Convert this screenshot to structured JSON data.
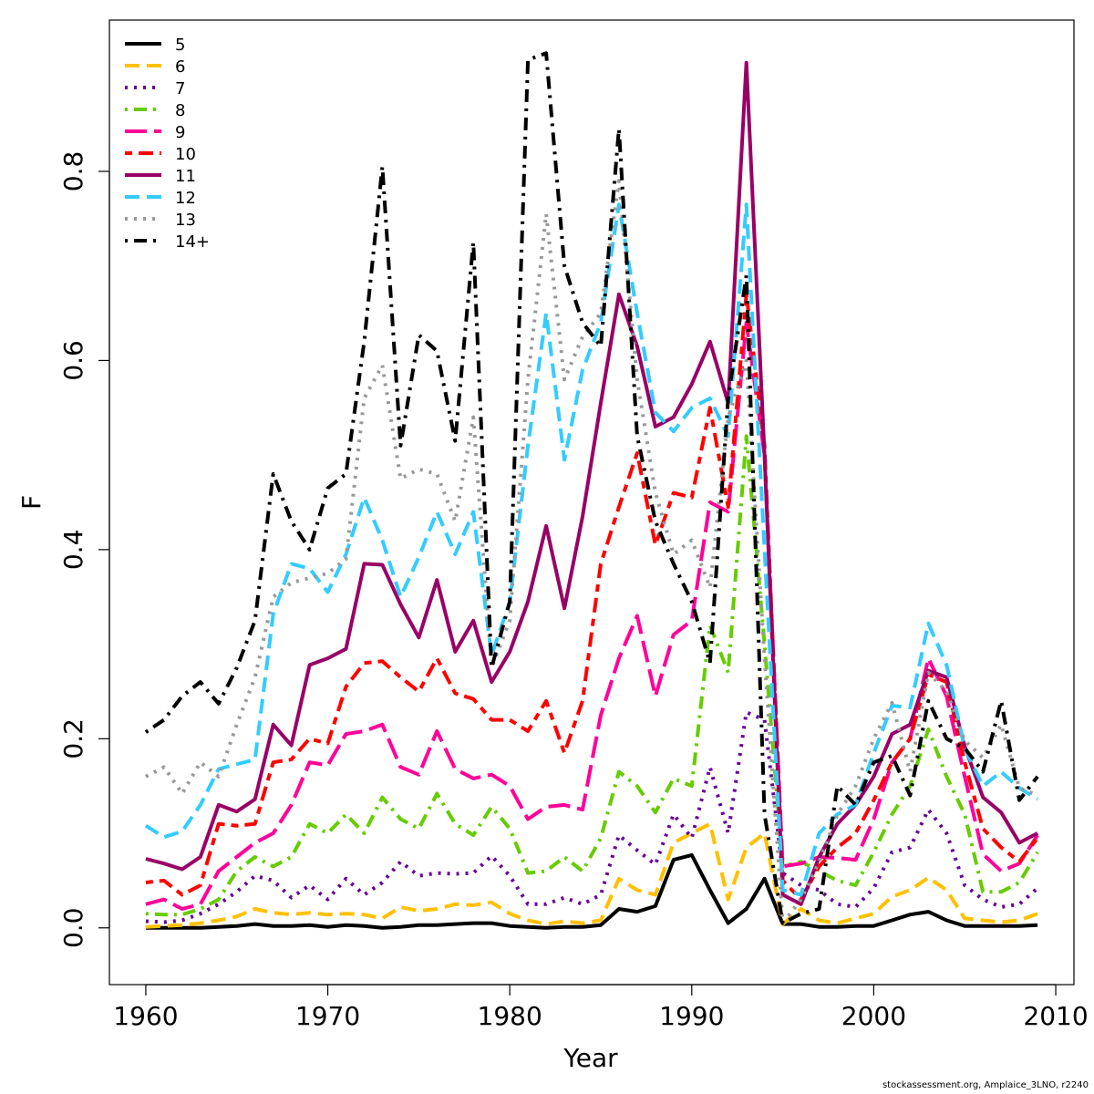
{
  "chart_data": {
    "type": "line",
    "title": "",
    "xlabel": "Year",
    "ylabel": "F",
    "xlim": [
      1958,
      2011
    ],
    "ylim": [
      -0.06,
      0.96
    ],
    "x_ticks": [
      1960,
      1970,
      1980,
      1990,
      2000,
      2010
    ],
    "y_ticks": [
      0.0,
      0.2,
      0.4,
      0.6,
      0.8
    ],
    "y_tick_labels": [
      "0.0",
      "0.2",
      "0.4",
      "0.6",
      "0.8"
    ],
    "legend_position": "top-left",
    "x": [
      1960,
      1961,
      1962,
      1963,
      1964,
      1965,
      1966,
      1967,
      1968,
      1969,
      1970,
      1971,
      1972,
      1973,
      1974,
      1975,
      1976,
      1977,
      1978,
      1979,
      1980,
      1981,
      1982,
      1983,
      1984,
      1985,
      1986,
      1987,
      1988,
      1989,
      1990,
      1991,
      1992,
      1993,
      1994,
      1995,
      1996,
      1997,
      1998,
      1999,
      2000,
      2001,
      2002,
      2003,
      2004,
      2005,
      2006,
      2007,
      2008,
      2009
    ],
    "series": [
      {
        "name": "5",
        "color": "#000000",
        "dash": "solid",
        "values": [
          0.0,
          0.0,
          0.0,
          0.0,
          0.001,
          0.002,
          0.004,
          0.002,
          0.002,
          0.003,
          0.001,
          0.003,
          0.002,
          0.0,
          0.001,
          0.003,
          0.003,
          0.004,
          0.005,
          0.005,
          0.002,
          0.001,
          0.0,
          0.001,
          0.001,
          0.003,
          0.02,
          0.017,
          0.023,
          0.072,
          0.077,
          0.04,
          0.005,
          0.02,
          0.052,
          0.004,
          0.004,
          0.001,
          0.001,
          0.002,
          0.002,
          0.008,
          0.014,
          0.017,
          0.008,
          0.002,
          0.002,
          0.002,
          0.002,
          0.003
        ]
      },
      {
        "name": "6",
        "color": "#FFC000",
        "dash": "dashed",
        "values": [
          0.001,
          0.002,
          0.003,
          0.005,
          0.008,
          0.012,
          0.02,
          0.016,
          0.014,
          0.016,
          0.014,
          0.015,
          0.014,
          0.01,
          0.022,
          0.018,
          0.02,
          0.025,
          0.024,
          0.027,
          0.015,
          0.008,
          0.004,
          0.007,
          0.005,
          0.008,
          0.052,
          0.04,
          0.035,
          0.09,
          0.1,
          0.11,
          0.03,
          0.085,
          0.1,
          0.004,
          0.02,
          0.008,
          0.005,
          0.01,
          0.015,
          0.033,
          0.04,
          0.053,
          0.04,
          0.01,
          0.008,
          0.006,
          0.008,
          0.015
        ]
      },
      {
        "name": "7",
        "color": "#660099",
        "dash": "dotted",
        "values": [
          0.007,
          0.006,
          0.008,
          0.015,
          0.025,
          0.038,
          0.055,
          0.05,
          0.032,
          0.045,
          0.03,
          0.052,
          0.035,
          0.048,
          0.07,
          0.055,
          0.058,
          0.057,
          0.058,
          0.076,
          0.055,
          0.025,
          0.025,
          0.032,
          0.025,
          0.035,
          0.098,
          0.082,
          0.067,
          0.12,
          0.095,
          0.17,
          0.1,
          0.228,
          0.22,
          0.058,
          0.045,
          0.04,
          0.025,
          0.022,
          0.042,
          0.08,
          0.085,
          0.125,
          0.1,
          0.045,
          0.03,
          0.022,
          0.025,
          0.042
        ]
      },
      {
        "name": "8",
        "color": "#66CC00",
        "dash": "dotdash",
        "values": [
          0.015,
          0.014,
          0.014,
          0.02,
          0.03,
          0.06,
          0.075,
          0.065,
          0.075,
          0.11,
          0.1,
          0.12,
          0.1,
          0.138,
          0.115,
          0.105,
          0.142,
          0.11,
          0.098,
          0.128,
          0.105,
          0.058,
          0.06,
          0.075,
          0.06,
          0.095,
          0.165,
          0.15,
          0.122,
          0.158,
          0.15,
          0.32,
          0.27,
          0.52,
          0.3,
          0.065,
          0.07,
          0.06,
          0.05,
          0.045,
          0.08,
          0.12,
          0.15,
          0.21,
          0.16,
          0.12,
          0.038,
          0.038,
          0.048,
          0.08
        ]
      },
      {
        "name": "9",
        "color": "#FF0099",
        "dash": "longdash",
        "values": [
          0.025,
          0.03,
          0.02,
          0.025,
          0.06,
          0.075,
          0.09,
          0.1,
          0.13,
          0.175,
          0.172,
          0.205,
          0.208,
          0.215,
          0.17,
          0.162,
          0.208,
          0.168,
          0.158,
          0.162,
          0.15,
          0.115,
          0.128,
          0.13,
          0.125,
          0.225,
          0.285,
          0.33,
          0.245,
          0.31,
          0.325,
          0.45,
          0.44,
          0.64,
          0.5,
          0.065,
          0.068,
          0.075,
          0.074,
          0.072,
          0.115,
          0.175,
          0.2,
          0.285,
          0.245,
          0.16,
          0.078,
          0.06,
          0.068,
          0.098
        ]
      },
      {
        "name": "10",
        "color": "#FF0000",
        "dash": "twodash",
        "values": [
          0.048,
          0.05,
          0.035,
          0.045,
          0.11,
          0.108,
          0.11,
          0.175,
          0.178,
          0.2,
          0.195,
          0.255,
          0.28,
          0.282,
          0.265,
          0.25,
          0.285,
          0.248,
          0.242,
          0.22,
          0.22,
          0.208,
          0.24,
          0.185,
          0.24,
          0.385,
          0.445,
          0.502,
          0.405,
          0.46,
          0.455,
          0.55,
          0.445,
          0.67,
          0.51,
          0.05,
          0.03,
          0.065,
          0.085,
          0.1,
          0.135,
          0.175,
          0.2,
          0.268,
          0.26,
          0.175,
          0.105,
          0.085,
          0.07,
          0.095
        ]
      },
      {
        "name": "11",
        "color": "#990066",
        "dash": "solid",
        "values": [
          0.073,
          0.068,
          0.062,
          0.075,
          0.13,
          0.123,
          0.136,
          0.215,
          0.193,
          0.278,
          0.285,
          0.295,
          0.385,
          0.384,
          0.342,
          0.307,
          0.368,
          0.292,
          0.325,
          0.26,
          0.292,
          0.345,
          0.425,
          0.338,
          0.435,
          0.555,
          0.67,
          0.615,
          0.53,
          0.54,
          0.575,
          0.62,
          0.555,
          0.915,
          0.5,
          0.035,
          0.025,
          0.075,
          0.11,
          0.13,
          0.16,
          0.205,
          0.215,
          0.272,
          0.265,
          0.192,
          0.138,
          0.122,
          0.09,
          0.1
        ]
      },
      {
        "name": "12",
        "color": "#33CCFF",
        "dash": "dashed",
        "values": [
          0.108,
          0.096,
          0.102,
          0.13,
          0.168,
          0.173,
          0.178,
          0.332,
          0.385,
          0.38,
          0.355,
          0.395,
          0.455,
          0.41,
          0.35,
          0.392,
          0.44,
          0.395,
          0.44,
          0.288,
          0.345,
          0.51,
          0.65,
          0.495,
          0.59,
          0.64,
          0.765,
          0.65,
          0.545,
          0.525,
          0.55,
          0.56,
          0.52,
          0.765,
          0.4,
          0.04,
          0.035,
          0.1,
          0.12,
          0.13,
          0.185,
          0.235,
          0.233,
          0.322,
          0.278,
          0.19,
          0.15,
          0.165,
          0.148,
          0.136
        ]
      },
      {
        "name": "13",
        "color": "#999999",
        "dash": "dotted",
        "values": [
          0.16,
          0.17,
          0.142,
          0.175,
          0.16,
          0.215,
          0.265,
          0.35,
          0.365,
          0.37,
          0.375,
          0.39,
          0.56,
          0.595,
          0.475,
          0.485,
          0.48,
          0.43,
          0.54,
          0.275,
          0.325,
          0.58,
          0.755,
          0.58,
          0.625,
          0.65,
          0.79,
          0.58,
          0.46,
          0.395,
          0.41,
          0.36,
          0.54,
          0.6,
          0.285,
          0.005,
          0.03,
          0.07,
          0.12,
          0.15,
          0.2,
          0.238,
          0.165,
          0.27,
          0.25,
          0.198,
          0.18,
          0.215,
          0.148,
          0.14
        ]
      },
      {
        "name": "14+",
        "color": "#000000",
        "dash": "dotdash",
        "values": [
          0.207,
          0.22,
          0.245,
          0.26,
          0.237,
          0.275,
          0.325,
          0.48,
          0.43,
          0.4,
          0.465,
          0.48,
          0.62,
          0.805,
          0.51,
          0.627,
          0.61,
          0.515,
          0.725,
          0.275,
          0.345,
          0.918,
          0.925,
          0.7,
          0.64,
          0.615,
          0.845,
          0.52,
          0.43,
          0.385,
          0.345,
          0.28,
          0.56,
          0.69,
          0.12,
          0.005,
          0.015,
          0.02,
          0.15,
          0.13,
          0.175,
          0.182,
          0.14,
          0.24,
          0.2,
          0.19,
          0.165,
          0.24,
          0.135,
          0.16
        ]
      }
    ]
  },
  "footer": {
    "credit": "stockassessment.org, Amplaice_3LNO, r2240"
  }
}
